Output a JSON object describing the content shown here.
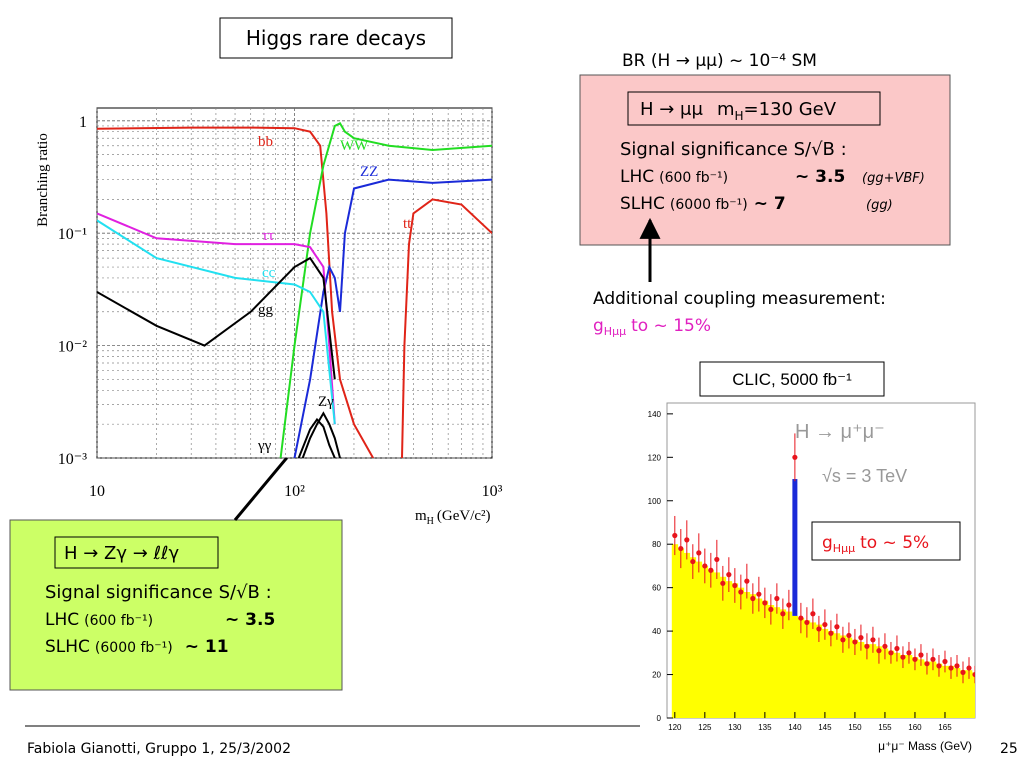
{
  "header": {
    "title": "Higgs rare decays"
  },
  "mumu": {
    "br": "BR (H → μμ) ~ 10⁻⁴  SM",
    "box_title": {
      "decay": "H → μμ",
      "m": "m",
      "sub": "H",
      "mass": "=130 GeV"
    },
    "significance": "Signal significance S/√B :",
    "rows": [
      {
        "machine": "LHC",
        "lumi": "(600 fb⁻¹)",
        "value": "~ 3.5",
        "process": "(gg+VBF)"
      },
      {
        "machine": "SLHC",
        "lumi": "(6000 fb⁻¹)",
        "value": "~ 7",
        "process": "(gg)"
      }
    ],
    "note": "Additional coupling measurement:",
    "coupling": {
      "g": "g",
      "sub": "Hμμ",
      "text": "to ~ 15%"
    }
  },
  "zgamma": {
    "box_title": "H → Zγ → ℓℓγ",
    "significance": "Signal significance S/√B :",
    "rows": [
      {
        "machine": "LHC",
        "lumi": "(600 fb⁻¹)",
        "value": "~ 3.5"
      },
      {
        "machine": "SLHC",
        "lumi": "(6000 fb⁻¹)",
        "value": "~ 11"
      }
    ]
  },
  "clic": {
    "title": "CLIC, 5000 fb⁻¹",
    "coupling": {
      "g": "g",
      "sub": "Hμμ",
      "text": "to ~ 5%"
    }
  },
  "footer": {
    "author": "Fabiola Gianotti,  Gruppo 1, 25/3/2002",
    "page": "25"
  },
  "chart_data": [
    {
      "type": "line",
      "y_label": "Branching ratio",
      "x_label": {
        "m": "m",
        "sub": "H",
        "unit": "(GeV/c²)"
      },
      "xscale": "log",
      "yscale": "log",
      "xlim": [
        10,
        1000
      ],
      "ylim": [
        0.001,
        1.3
      ],
      "xticks": [
        10,
        {
          "value": 100,
          "label": "10²"
        },
        {
          "value": 1000,
          "label": "10³"
        }
      ],
      "yticks": [
        {
          "value": 0.001,
          "label": "10⁻³"
        },
        {
          "value": 0.01,
          "label": "10⁻²"
        },
        {
          "value": 0.1,
          "label": "10⁻¹"
        },
        1
      ],
      "xminor": [
        20,
        30,
        40,
        50,
        60,
        70,
        80,
        90,
        200,
        300,
        400,
        500,
        600,
        700,
        800,
        900
      ],
      "yminor": [
        0.002,
        0.003,
        0.004,
        0.005,
        0.006,
        0.007,
        0.008,
        0.009,
        0.02,
        0.03,
        0.04,
        0.05,
        0.06,
        0.07,
        0.08,
        0.09,
        0.2,
        0.3,
        0.4,
        0.5,
        0.6,
        0.7,
        0.8,
        0.9
      ],
      "grid": true,
      "series": [
        {
          "name": "bb",
          "color": "#e02418",
          "x": [
            10,
            30,
            60,
            100,
            120,
            135,
            145,
            155,
            170,
            200,
            250
          ],
          "values": [
            0.85,
            0.87,
            0.87,
            0.86,
            0.8,
            0.6,
            0.15,
            0.02,
            0.005,
            0.002,
            0.001
          ]
        },
        {
          "name": "WW",
          "color": "#22dd22",
          "x": [
            85,
            100,
            120,
            140,
            160,
            170,
            180,
            200,
            300,
            500,
            1000
          ],
          "values": [
            0.001,
            0.01,
            0.1,
            0.4,
            0.9,
            0.95,
            0.8,
            0.7,
            0.6,
            0.55,
            0.6
          ]
        },
        {
          "name": "ZZ",
          "color": "#1a2ad8",
          "x": [
            100,
            120,
            140,
            150,
            160,
            170,
            180,
            200,
            300,
            500,
            1000
          ],
          "values": [
            0.001,
            0.005,
            0.03,
            0.05,
            0.04,
            0.02,
            0.1,
            0.25,
            0.3,
            0.28,
            0.3
          ]
        },
        {
          "name": "tt",
          "color": "#e02418",
          "x": [
            350,
            360,
            380,
            400,
            500,
            700,
            1000
          ],
          "values": [
            0.001,
            0.01,
            0.08,
            0.15,
            0.2,
            0.18,
            0.1
          ]
        },
        {
          "name": "ττ",
          "color": "#e020e0",
          "x": [
            10,
            20,
            50,
            100,
            120,
            140,
            150,
            160
          ],
          "values": [
            0.15,
            0.09,
            0.08,
            0.08,
            0.075,
            0.05,
            0.01,
            0.002
          ]
        },
        {
          "name": "cc",
          "color": "#22e0f0",
          "x": [
            10,
            20,
            50,
            100,
            120,
            140,
            160
          ],
          "values": [
            0.13,
            0.06,
            0.04,
            0.035,
            0.03,
            0.02,
            0.002
          ]
        },
        {
          "name": "gg",
          "color": "#000000",
          "x": [
            10,
            20,
            35,
            60,
            100,
            120,
            140,
            160
          ],
          "values": [
            0.03,
            0.015,
            0.01,
            0.02,
            0.05,
            0.06,
            0.04,
            0.005
          ]
        },
        {
          "name": "Zγ",
          "color": "#000000",
          "x": [
            110,
            120,
            130,
            140,
            150,
            160,
            170
          ],
          "values": [
            0.001,
            0.0015,
            0.002,
            0.0025,
            0.002,
            0.0015,
            0.001
          ]
        },
        {
          "name": "γγ",
          "color": "#000000",
          "x": [
            105,
            120,
            130,
            140,
            150,
            160
          ],
          "values": [
            0.001,
            0.0018,
            0.0022,
            0.0019,
            0.0013,
            0.001
          ]
        }
      ]
    },
    {
      "type": "errorbar",
      "x_label": "μ⁺μ⁻ Mass (GeV)",
      "annotations": [
        "H → μ⁺μ⁻",
        "√s = 3 TeV"
      ],
      "xlim": [
        118.7,
        170
      ],
      "ylim": [
        0,
        145
      ],
      "xticks": [
        120,
        125,
        130,
        135,
        140,
        145,
        150,
        155,
        160,
        165
      ],
      "yticks": [
        0,
        20,
        40,
        60,
        80,
        100,
        120,
        140
      ],
      "points": {
        "color": "#e8141c",
        "x": [
          120,
          121,
          122,
          123,
          124,
          125,
          126,
          127,
          128,
          129,
          130,
          131,
          132,
          133,
          134,
          135,
          136,
          137,
          138,
          139,
          140,
          141,
          142,
          143,
          144,
          145,
          146,
          147,
          148,
          149,
          150,
          151,
          152,
          153,
          154,
          155,
          156,
          157,
          158,
          159,
          160,
          161,
          162,
          163,
          164,
          165,
          166,
          167,
          168,
          169,
          170
        ],
        "values": [
          84,
          78,
          82,
          72,
          76,
          70,
          68,
          73,
          62,
          66,
          61,
          58,
          63,
          55,
          57,
          53,
          50,
          55,
          48,
          52,
          120,
          46,
          44,
          48,
          41,
          43,
          39,
          42,
          36,
          38,
          35,
          37,
          33,
          36,
          31,
          33,
          30,
          32,
          28,
          30,
          27,
          29,
          25,
          27,
          24,
          26,
          23,
          24,
          21,
          23,
          20
        ],
        "errors": [
          9,
          9,
          9,
          8,
          9,
          8,
          8,
          9,
          8,
          8,
          8,
          8,
          8,
          7,
          8,
          7,
          7,
          7,
          7,
          7,
          11,
          7,
          7,
          7,
          6,
          7,
          6,
          6,
          6,
          6,
          6,
          6,
          6,
          6,
          6,
          6,
          5,
          6,
          5,
          5,
          5,
          5,
          5,
          5,
          5,
          5,
          5,
          5,
          5,
          5,
          4
        ]
      },
      "background": {
        "color": "#ffff00",
        "values": [
          80,
          78,
          76,
          74,
          72,
          70,
          68,
          67,
          65,
          63,
          62,
          60,
          58,
          57,
          55,
          54,
          52,
          51,
          50,
          49,
          47,
          46,
          45,
          44,
          43,
          41,
          40,
          39,
          38,
          37,
          36,
          35,
          34,
          34,
          33,
          32,
          31,
          30,
          29,
          29,
          28,
          27,
          26,
          26,
          25,
          24,
          24,
          23,
          22,
          22,
          21
        ]
      },
      "signal": {
        "color": "#1a2ad8",
        "x": 140,
        "value": 110
      }
    }
  ]
}
